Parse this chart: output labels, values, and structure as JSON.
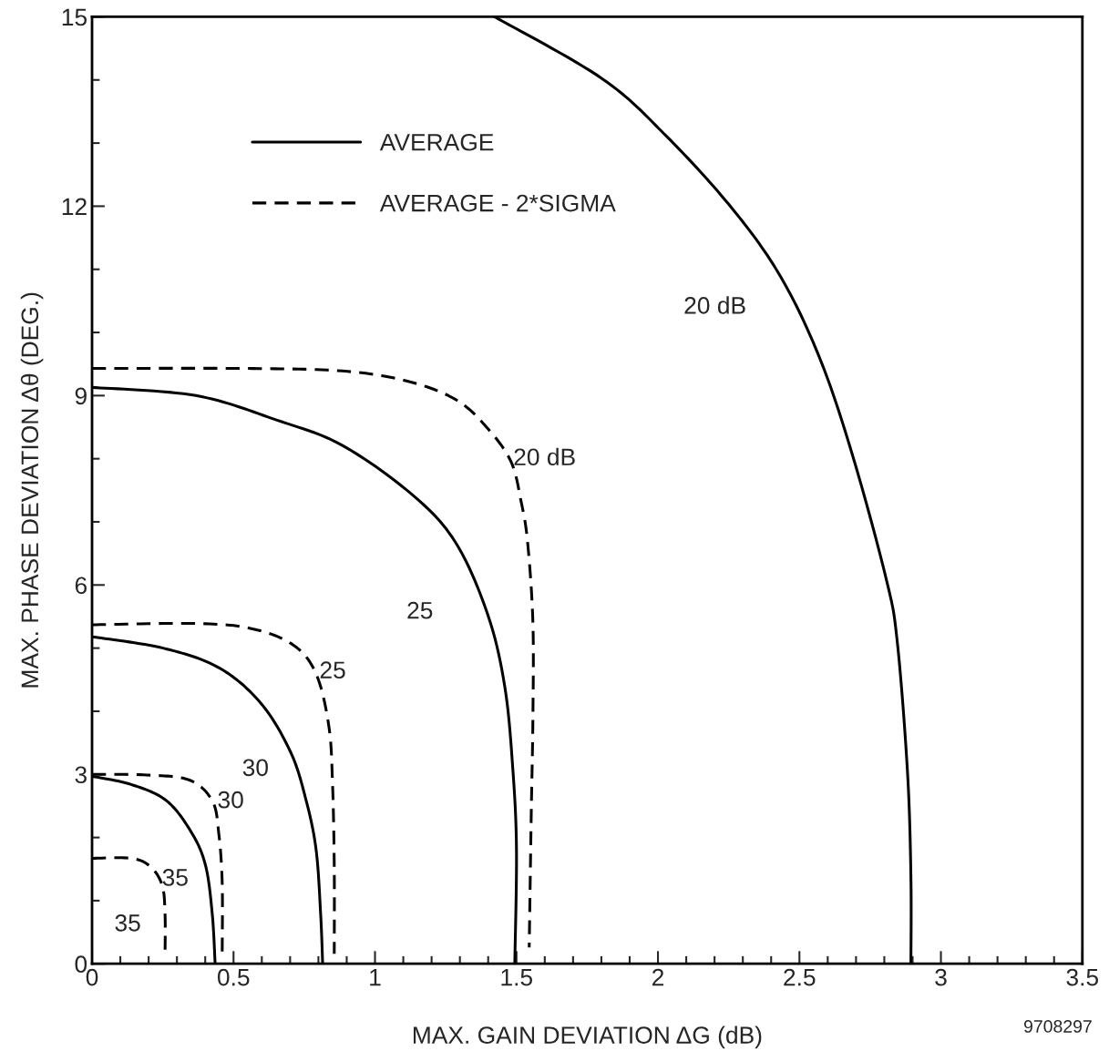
{
  "chart_data": {
    "type": "line",
    "xlabel": "MAX. GAIN DEVIATION ΔG (dB)",
    "ylabel": "MAX. PHASE DEVIATION Δθ (DEG.)",
    "xlim": [
      0,
      3.5
    ],
    "ylim": [
      0,
      15
    ],
    "xticks": [
      0,
      {
        "value": 0.1,
        "label": null
      },
      {
        "value": 0.2,
        "label": null
      },
      {
        "value": 0.3,
        "label": null
      },
      {
        "value": 0.4,
        "label": null
      },
      0.5,
      {
        "value": 0.6,
        "label": null
      },
      {
        "value": 0.7,
        "label": null
      },
      {
        "value": 0.8,
        "label": null
      },
      {
        "value": 0.9,
        "label": null
      },
      1,
      {
        "value": 1.1,
        "label": null
      },
      {
        "value": 1.2,
        "label": null
      },
      {
        "value": 1.3,
        "label": null
      },
      {
        "value": 1.4,
        "label": null
      },
      1.5,
      {
        "value": 1.6,
        "label": null
      },
      {
        "value": 1.7,
        "label": null
      },
      {
        "value": 1.8,
        "label": null
      },
      {
        "value": 1.9,
        "label": null
      },
      2,
      {
        "value": 2.1,
        "label": null
      },
      {
        "value": 2.2,
        "label": null
      },
      {
        "value": 2.3,
        "label": null
      },
      {
        "value": 2.4,
        "label": null
      },
      2.5,
      {
        "value": 2.6,
        "label": null
      },
      {
        "value": 2.7,
        "label": null
      },
      {
        "value": 2.8,
        "label": null
      },
      {
        "value": 2.9,
        "label": null
      },
      3,
      {
        "value": 3.1,
        "label": null
      },
      {
        "value": 3.2,
        "label": null
      },
      {
        "value": 3.3,
        "label": null
      },
      {
        "value": 3.4,
        "label": null
      },
      3.5
    ],
    "yticks": [
      0,
      {
        "value": 1,
        "label": null
      },
      {
        "value": 2,
        "label": null
      },
      3,
      {
        "value": 4,
        "label": null
      },
      {
        "value": 5,
        "label": null
      },
      6,
      {
        "value": 7,
        "label": null
      },
      {
        "value": 8,
        "label": null
      },
      9,
      {
        "value": 10,
        "label": null
      },
      {
        "value": 11,
        "label": null
      },
      12,
      {
        "value": 13,
        "label": null
      },
      {
        "value": 14,
        "label": null
      },
      15
    ],
    "grid": false,
    "legend": "top left",
    "marker": "none",
    "series": [
      {
        "name": "AVERAGE",
        "color": "#000000",
        "line_style": "solid",
        "x": [
          1.423,
          1.803,
          2.032,
          2.263,
          2.434,
          2.572,
          2.688,
          2.807,
          2.846,
          2.882,
          2.894,
          2.894
        ],
        "values": [
          15,
          14.02,
          13.1,
          11.96,
          10.88,
          9.59,
          8.05,
          6.09,
          5.09,
          3.03,
          1.37,
          0
        ]
      },
      {
        "name": "AVERAGE - 2*SIGMA",
        "color": "#000000",
        "line_style": "dashed",
        "x": [
          0,
          0.541,
          0.885,
          1.114,
          1.288,
          1.4,
          1.481,
          1.516,
          1.539,
          1.558,
          1.558,
          1.552,
          1.545
        ],
        "values": [
          9.43,
          9.43,
          9.39,
          9.23,
          8.93,
          8.47,
          7.95,
          7.33,
          6.69,
          5.41,
          3.87,
          2.32,
          0.26
        ]
      },
      {
        "color": "#000000",
        "line_style": "solid",
        "x": [
          0,
          0.367,
          0.654,
          0.885,
          1.137,
          1.288,
          1.4,
          1.459,
          1.487,
          1.5,
          1.494
        ],
        "values": [
          9.13,
          9.0,
          8.61,
          8.21,
          7.41,
          6.65,
          5.51,
          4.38,
          3.09,
          1.8,
          0
        ]
      },
      {
        "color": "#000000",
        "line_style": "dashed",
        "x": [
          0,
          0.367,
          0.563,
          0.711,
          0.792,
          0.837,
          0.85,
          0.856,
          0.856
        ],
        "values": [
          5.37,
          5.39,
          5.31,
          5.05,
          4.59,
          3.76,
          2.84,
          1.54,
          0.16
        ]
      },
      {
        "color": "#000000",
        "line_style": "solid",
        "x": [
          0,
          0.251,
          0.448,
          0.596,
          0.702,
          0.757,
          0.792,
          0.808,
          0.815
        ],
        "values": [
          5.18,
          5.0,
          4.69,
          4.13,
          3.35,
          2.58,
          1.8,
          0.78,
          0
        ]
      },
      {
        "color": "#000000",
        "line_style": "dashed",
        "x": [
          0,
          0.193,
          0.344,
          0.425,
          0.448,
          0.46,
          0.46
        ],
        "values": [
          3.0,
          2.99,
          2.91,
          2.58,
          2.06,
          1.28,
          0.16
        ]
      },
      {
        "color": "#000000",
        "line_style": "solid",
        "x": [
          0,
          0.138,
          0.264,
          0.354,
          0.402,
          0.425,
          0.435
        ],
        "values": [
          2.97,
          2.84,
          2.58,
          2.06,
          1.54,
          0.78,
          0
        ]
      },
      {
        "color": "#000000",
        "line_style": "dashed",
        "x": [
          0,
          0.138,
          0.206,
          0.248,
          0.258,
          0.258
        ],
        "values": [
          1.67,
          1.67,
          1.54,
          1.24,
          0.78,
          0.16
        ]
      }
    ],
    "annotations": [
      "20 dB",
      "20 dB",
      "25",
      "25",
      "30",
      "30",
      "35",
      "35",
      "9708297"
    ]
  }
}
